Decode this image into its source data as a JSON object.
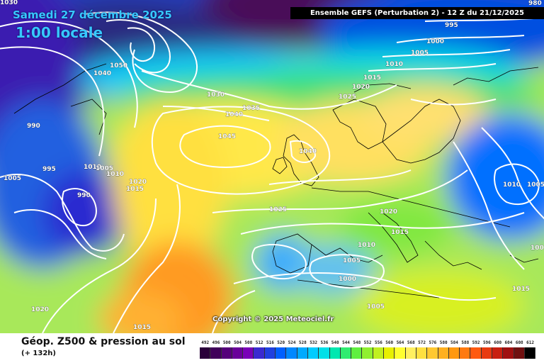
{
  "header": {
    "date": "Samedi 27 décembre 2025",
    "time": "1:00 locale",
    "run_info": "Ensemble GEFS  (Perturbation 2)  -  12 Z du 21/12/2025"
  },
  "copyright": "Copyright © 2025 Meteociel.fr",
  "isobar_labels": [
    "1030",
    "995",
    "1000",
    "1005",
    "1010",
    "1015",
    "1020",
    "1025",
    "1030",
    "1035",
    "1040",
    "1045",
    "1050",
    "990",
    "1040",
    "1010",
    "1005",
    "1010",
    "1020",
    "1015",
    "1025",
    "1020",
    "1015",
    "1010",
    "1005",
    "1000",
    "1005",
    "1020",
    "1015",
    "1010",
    "1005",
    "100",
    "1015",
    "980",
    "990",
    "995",
    "1005",
    "1040"
  ],
  "footer": {
    "title": "Géop. Z500 & pression au sol",
    "subtitle": "(+ 132h)"
  },
  "scale": {
    "labels": [
      "492",
      "496",
      "500",
      "504",
      "508",
      "512",
      "516",
      "520",
      "524",
      "528",
      "532",
      "536",
      "540",
      "544",
      "548",
      "552",
      "556",
      "560",
      "564",
      "568",
      "572",
      "576",
      "580",
      "584",
      "588",
      "592",
      "596",
      "600",
      "604",
      "608",
      "612"
    ],
    "colors": [
      "#2a003a",
      "#40005a",
      "#55007a",
      "#6a009a",
      "#7a00b8",
      "#3a2ad0",
      "#2040e0",
      "#0060ff",
      "#0088ff",
      "#00aaff",
      "#00ccff",
      "#00e0e8",
      "#00e8b0",
      "#30ec70",
      "#60f040",
      "#90f030",
      "#c0f020",
      "#e8f000",
      "#ffff30",
      "#fff060",
      "#ffe040",
      "#ffc830",
      "#ffb020",
      "#ff9810",
      "#ff7a10",
      "#ff5a10",
      "#e83a10",
      "#c82010",
      "#a01010",
      "#701010",
      "#000000"
    ]
  }
}
